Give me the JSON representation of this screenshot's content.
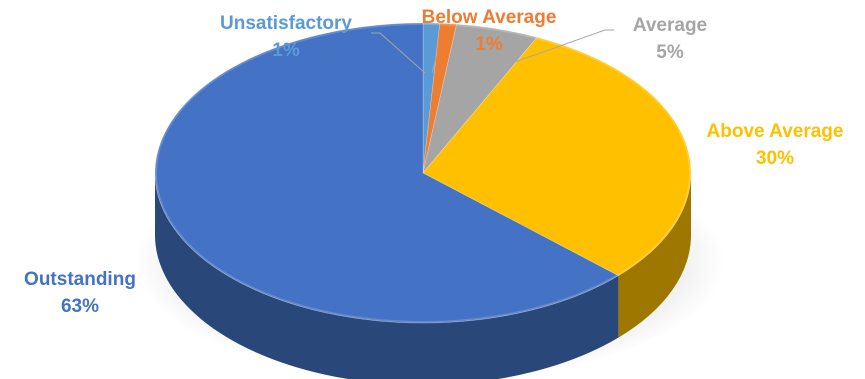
{
  "chart_data": {
    "type": "pie",
    "style": "3d",
    "title": "",
    "legend": "none",
    "slices": [
      {
        "label": "Unsatisfactory",
        "value": 1,
        "percent_label": "1%",
        "color": "#5B9BD5"
      },
      {
        "label": "Below Average",
        "value": 1,
        "percent_label": "1%",
        "color": "#ED7D31"
      },
      {
        "label": "Average",
        "value": 5,
        "percent_label": "5%",
        "color": "#A5A5A5"
      },
      {
        "label": "Above Average",
        "value": 30,
        "percent_label": "30%",
        "color": "#FFC000"
      },
      {
        "label": "Outstanding",
        "value": 63,
        "percent_label": "63%",
        "color": "#4472C4"
      }
    ]
  },
  "label_colors": {
    "Unsatisfactory": "#5B9BD5",
    "Below Average": "#ED7D31",
    "Average": "#A5A5A5",
    "Above Average": "#FFC000",
    "Outstanding": "#4472C4"
  }
}
